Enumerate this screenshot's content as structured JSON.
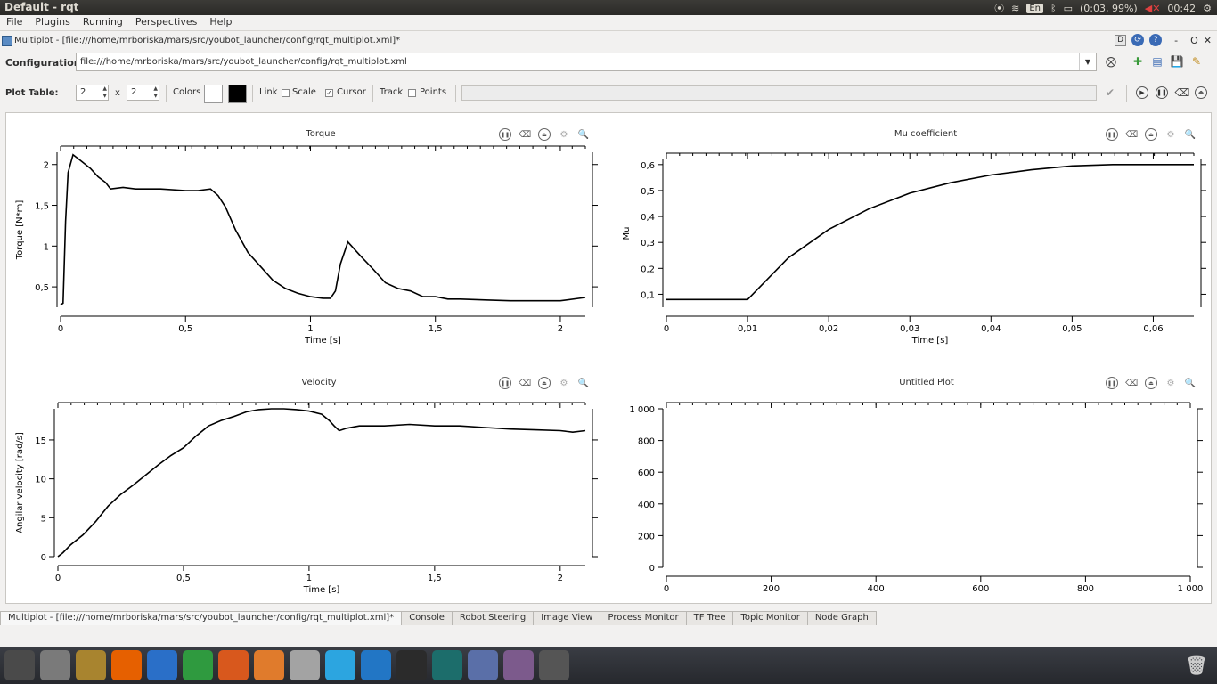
{
  "window": {
    "title": "Default - rqt"
  },
  "tray": {
    "lang": "En",
    "battery": "(0:03, 99%)",
    "clock": "00:42"
  },
  "menu": [
    "File",
    "Plugins",
    "Running",
    "Perspectives",
    "Help"
  ],
  "dock": {
    "title": "Multiplot - [file:///home/mrboriska/mars/src/youbot_launcher/config/rqt_multiplot.xml]*",
    "d_label": "D",
    "help": "?",
    "minus": "-",
    "o": "O",
    "close": "✕"
  },
  "config": {
    "label": "Configuration:",
    "value": "file:///home/mrboriska/mars/src/youbot_launcher/config/rqt_multiplot.xml"
  },
  "plot_table": {
    "label": "Plot Table:",
    "rows": "2",
    "x": "x",
    "cols": "2",
    "colors_label": "Colors",
    "link_label": "Link",
    "scale_label": "Scale",
    "cursor_label": "Cursor",
    "track_label": "Track",
    "points_label": "Points",
    "colors": {
      "bg": "#ffffff",
      "fg": "#000000"
    }
  },
  "plots": [
    {
      "title": "Torque",
      "xlabel": "Time [s]",
      "ylabel": "Torque [N*m]",
      "xticks": [
        "0",
        "0,5",
        "1",
        "1,5",
        "2"
      ],
      "yticks": [
        "0,5",
        "1",
        "1,5",
        "2"
      ]
    },
    {
      "title": "Mu coefficient",
      "xlabel": "Time [s]",
      "ylabel": "Mu",
      "xticks": [
        "0",
        "0,01",
        "0,02",
        "0,03",
        "0,04",
        "0,05",
        "0,06"
      ],
      "yticks": [
        "0,1",
        "0,2",
        "0,3",
        "0,4",
        "0,5",
        "0,6"
      ]
    },
    {
      "title": "Velocity",
      "xlabel": "Time [s]",
      "ylabel": "Angilar velocity [rad/s]",
      "xticks": [
        "0",
        "0,5",
        "1",
        "1,5",
        "2"
      ],
      "yticks": [
        "0",
        "5",
        "10",
        "15"
      ]
    },
    {
      "title": "Untitled Plot",
      "xlabel": "",
      "ylabel": "",
      "xticks": [
        "0",
        "200",
        "400",
        "600",
        "800",
        "1 000"
      ],
      "yticks": [
        "0",
        "200",
        "400",
        "600",
        "800",
        "1 000"
      ]
    }
  ],
  "chart_data": [
    {
      "type": "line",
      "title": "Torque",
      "xlabel": "Time [s]",
      "ylabel": "Torque [N*m]",
      "xlim": [
        0,
        2.1
      ],
      "ylim": [
        0.25,
        2.15
      ],
      "series": [
        {
          "x": [
            0,
            0.01,
            0.02,
            0.03,
            0.05,
            0.08,
            0.12,
            0.15,
            0.18,
            0.2,
            0.25,
            0.3,
            0.4,
            0.5,
            0.55,
            0.6,
            0.63,
            0.66,
            0.7,
            0.75,
            0.8,
            0.85,
            0.9,
            0.95,
            1.0,
            1.05,
            1.08,
            1.1,
            1.12,
            1.15,
            1.2,
            1.25,
            1.3,
            1.35,
            1.4,
            1.45,
            1.5,
            1.55,
            1.6,
            1.7,
            1.8,
            1.9,
            2.0,
            2.1
          ],
          "y": [
            0.28,
            0.3,
            1.3,
            1.9,
            2.12,
            2.05,
            1.95,
            1.85,
            1.78,
            1.7,
            1.72,
            1.7,
            1.7,
            1.68,
            1.68,
            1.7,
            1.62,
            1.48,
            1.2,
            0.92,
            0.75,
            0.58,
            0.48,
            0.42,
            0.38,
            0.36,
            0.36,
            0.45,
            0.78,
            1.05,
            0.88,
            0.72,
            0.55,
            0.48,
            0.45,
            0.38,
            0.38,
            0.35,
            0.35,
            0.34,
            0.33,
            0.33,
            0.33,
            0.37
          ]
        }
      ]
    },
    {
      "type": "line",
      "title": "Mu coefficient",
      "xlabel": "Time [s]",
      "ylabel": "Mu",
      "xlim": [
        0,
        0.065
      ],
      "ylim": [
        0.05,
        0.62
      ],
      "series": [
        {
          "x": [
            0,
            0.01,
            0.015,
            0.02,
            0.025,
            0.03,
            0.035,
            0.04,
            0.045,
            0.05,
            0.055,
            0.06,
            0.065
          ],
          "y": [
            0.08,
            0.08,
            0.24,
            0.35,
            0.43,
            0.49,
            0.53,
            0.56,
            0.58,
            0.595,
            0.6,
            0.6,
            0.6
          ]
        }
      ]
    },
    {
      "type": "line",
      "title": "Velocity",
      "xlabel": "Time [s]",
      "ylabel": "Angilar velocity [rad/s]",
      "xlim": [
        0,
        2.1
      ],
      "ylim": [
        0,
        19
      ],
      "series": [
        {
          "x": [
            0,
            0.02,
            0.05,
            0.1,
            0.15,
            0.2,
            0.25,
            0.3,
            0.35,
            0.4,
            0.45,
            0.5,
            0.55,
            0.6,
            0.65,
            0.7,
            0.75,
            0.8,
            0.85,
            0.9,
            0.95,
            1.0,
            1.05,
            1.08,
            1.1,
            1.12,
            1.15,
            1.2,
            1.3,
            1.4,
            1.5,
            1.6,
            1.7,
            1.8,
            1.9,
            2.0,
            2.05,
            2.1
          ],
          "y": [
            0,
            0.5,
            1.5,
            2.8,
            4.5,
            6.5,
            8,
            9.2,
            10.5,
            11.8,
            13,
            14,
            15.5,
            16.8,
            17.5,
            18,
            18.6,
            18.9,
            19,
            19,
            18.9,
            18.7,
            18.3,
            17.5,
            16.8,
            16.2,
            16.5,
            16.8,
            16.8,
            17,
            16.8,
            16.8,
            16.6,
            16.4,
            16.3,
            16.2,
            16,
            16.2
          ]
        }
      ]
    },
    {
      "type": "line",
      "title": "Untitled Plot",
      "xlim": [
        0,
        1000
      ],
      "ylim": [
        0,
        1000
      ],
      "series": []
    }
  ],
  "tabs": [
    "Multiplot - [file:///home/mrboriska/mars/src/youbot_launcher/config/rqt_multiplot.xml]*",
    "Console",
    "Robot Steering",
    "Image View",
    "Process Monitor",
    "TF Tree",
    "Topic Monitor",
    "Node Graph"
  ],
  "launcher": [
    {
      "name": "dash-icon",
      "color": "#4a4a4a"
    },
    {
      "name": "system-settings-icon",
      "color": "#7a7a7a"
    },
    {
      "name": "files-icon",
      "color": "#a8842f"
    },
    {
      "name": "firefox-icon",
      "color": "#e66000"
    },
    {
      "name": "writer-icon",
      "color": "#2a6fc8"
    },
    {
      "name": "calc-icon",
      "color": "#2f9a3f"
    },
    {
      "name": "impress-icon",
      "color": "#d8581d"
    },
    {
      "name": "software-center-icon",
      "color": "#e07b2c"
    },
    {
      "name": "tools-icon",
      "color": "#a3a3a3"
    },
    {
      "name": "telegram-icon",
      "color": "#2ca5e0"
    },
    {
      "name": "vscode-icon",
      "color": "#2276c5"
    },
    {
      "name": "terminal-icon",
      "color": "#2b2b2b"
    },
    {
      "name": "gitkraken-icon",
      "color": "#1c6d6b"
    },
    {
      "name": "apps-icon",
      "color": "#5a6fa8"
    },
    {
      "name": "window-icon",
      "color": "#7c5a8c"
    },
    {
      "name": "workspace-icon",
      "color": "#555555"
    }
  ]
}
